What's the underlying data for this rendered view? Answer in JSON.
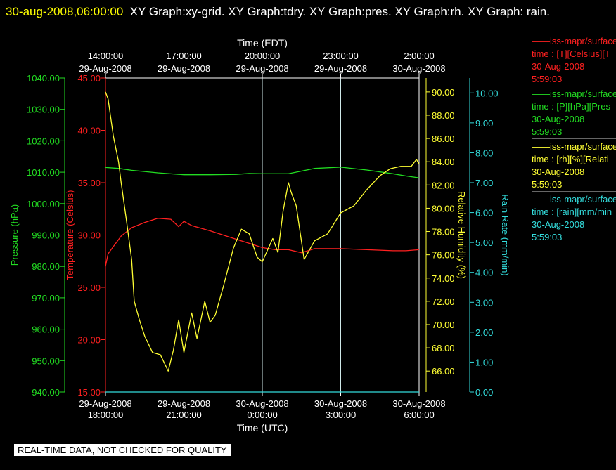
{
  "header": {
    "timestamp": "30-aug-2008,06:00:00",
    "graphs": "XY Graph:xy-grid.  XY Graph:tdry.  XY Graph:pres.  XY Graph:rh.  XY Graph: rain."
  },
  "legend": [
    {
      "line1": "iss-mapr/surface",
      "line2": "time : [T][Celsius][T",
      "date": "30-Aug-2008",
      "time": "5:59:03",
      "color": "#ff2020"
    },
    {
      "line1": "iss-mapr/surface",
      "line2": "time : [P][hPa][Pres",
      "date": "30-Aug-2008",
      "time": "5:59:03",
      "color": "#22dd22"
    },
    {
      "line1": "iss-mapr/surface",
      "line2": "time : [rh][%][Relati",
      "date": "30-Aug-2008",
      "time": "5:59:03",
      "color": "#ffff33"
    },
    {
      "line1": "iss-mapr/surface",
      "line2": "time : [rain][mm/min",
      "date": "30-Aug-2008",
      "time": "5:59:03",
      "color": "#33dddd"
    }
  ],
  "footer_note": "REAL-TIME DATA, NOT CHECKED FOR QUALITY",
  "chart_data": {
    "type": "line",
    "top_axis": {
      "label": "Time (EDT)",
      "ticks": [
        {
          "time": "14:00:00",
          "date": "29-Aug-2008"
        },
        {
          "time": "17:00:00",
          "date": "29-Aug-2008"
        },
        {
          "time": "20:00:00",
          "date": "29-Aug-2008"
        },
        {
          "time": "23:00:00",
          "date": "29-Aug-2008"
        },
        {
          "time": "2:00:00",
          "date": "30-Aug-2008"
        }
      ]
    },
    "bottom_axis": {
      "label": "Time (UTC)",
      "ticks": [
        {
          "date": "29-Aug-2008",
          "time": "18:00:00"
        },
        {
          "date": "29-Aug-2008",
          "time": "21:00:00"
        },
        {
          "date": "30-Aug-2008",
          "time": "0:00:00"
        },
        {
          "date": "30-Aug-2008",
          "time": "3:00:00"
        },
        {
          "date": "30-Aug-2008",
          "time": "6:00:00"
        }
      ],
      "xlim": [
        0,
        12
      ]
    },
    "y_axes": [
      {
        "id": "pressure",
        "label": "Pressure (hPa)",
        "color": "#22dd22",
        "ylim": [
          940,
          1040
        ],
        "ticks": [
          "940.00",
          "950.00",
          "960.00",
          "970.00",
          "980.00",
          "990.00",
          "1000.00",
          "1010.00",
          "1020.00",
          "1030.00",
          "1040.00"
        ]
      },
      {
        "id": "temperature",
        "label": "Temperature (Celsius)",
        "color": "#ff2020",
        "ylim": [
          15,
          45
        ],
        "ticks": [
          "15.00",
          "20.00",
          "25.00",
          "30.00",
          "35.00",
          "40.00",
          "45.00"
        ]
      },
      {
        "id": "rh",
        "label": "Relative Humidity (%)",
        "color": "#ffff33",
        "ylim": [
          64.2,
          91.2
        ],
        "ticks": [
          "66.00",
          "68.00",
          "70.00",
          "72.00",
          "74.00",
          "76.00",
          "78.00",
          "80.00",
          "82.00",
          "84.00",
          "86.00",
          "88.00",
          "90.00"
        ]
      },
      {
        "id": "rain",
        "label": "Rain Rate (mm/min)",
        "color": "#33dddd",
        "ylim": [
          0,
          10.5
        ],
        "ticks": [
          "0.00",
          "1.00",
          "2.00",
          "3.00",
          "4.00",
          "5.00",
          "6.00",
          "7.00",
          "8.00",
          "9.00",
          "10.00"
        ]
      }
    ],
    "grid": "vertical",
    "series": [
      {
        "axis": "pressure",
        "x": [
          0,
          0.5,
          1,
          2,
          3,
          4,
          5,
          5.5,
          6,
          7,
          8,
          9,
          10,
          11,
          11.5,
          12
        ],
        "y": [
          1011.5,
          1011.2,
          1010.6,
          1009.8,
          1009.2,
          1009.2,
          1009.3,
          1009.6,
          1009.5,
          1009.5,
          1011.2,
          1011.6,
          1010.7,
          1009.5,
          1008.8,
          1008.2
        ]
      },
      {
        "axis": "temperature",
        "x": [
          0,
          0.1,
          0.3,
          0.6,
          1,
          1.5,
          2,
          2.5,
          2.8,
          3,
          3.3,
          4,
          5,
          5.5,
          6,
          6.5,
          7,
          7.5,
          8,
          9,
          10,
          11,
          11.5,
          12
        ],
        "y": [
          27.0,
          28.2,
          28.9,
          29.9,
          30.7,
          31.2,
          31.6,
          31.5,
          30.8,
          31.3,
          30.9,
          30.4,
          29.6,
          29.2,
          28.8,
          28.6,
          28.6,
          28.3,
          28.7,
          28.7,
          28.6,
          28.5,
          28.5,
          28.6
        ]
      },
      {
        "axis": "rh",
        "x": [
          0,
          0.1,
          0.3,
          0.5,
          0.6,
          0.8,
          1,
          1.1,
          1.3,
          1.5,
          1.8,
          2.1,
          2.4,
          2.6,
          2.8,
          3,
          3.3,
          3.5,
          3.8,
          4,
          4.2,
          4.5,
          4.9,
          5.2,
          5.5,
          5.8,
          6,
          6.2,
          6.4,
          6.6,
          6.8,
          7.0,
          7.1,
          7.3,
          7.6,
          8.0,
          8.5,
          9,
          9.5,
          10,
          10.5,
          10.9,
          11.3,
          11.7,
          11.9,
          12
        ],
        "y": [
          90.0,
          89.4,
          86.2,
          84.0,
          82.2,
          79.0,
          75.6,
          72.0,
          70.4,
          69.0,
          67.6,
          67.4,
          66.0,
          67.8,
          70.4,
          67.6,
          71.0,
          68.8,
          72.0,
          70.2,
          70.8,
          73.2,
          76.6,
          78.2,
          77.8,
          75.8,
          75.4,
          76.4,
          77.4,
          76.2,
          79.8,
          82.2,
          81.4,
          80.2,
          75.6,
          77.2,
          77.8,
          79.6,
          80.2,
          81.6,
          82.8,
          83.4,
          83.6,
          83.6,
          84.2,
          83.8
        ]
      },
      {
        "axis": "rain",
        "x": [
          0,
          12
        ],
        "y": [
          0,
          0
        ]
      }
    ]
  }
}
